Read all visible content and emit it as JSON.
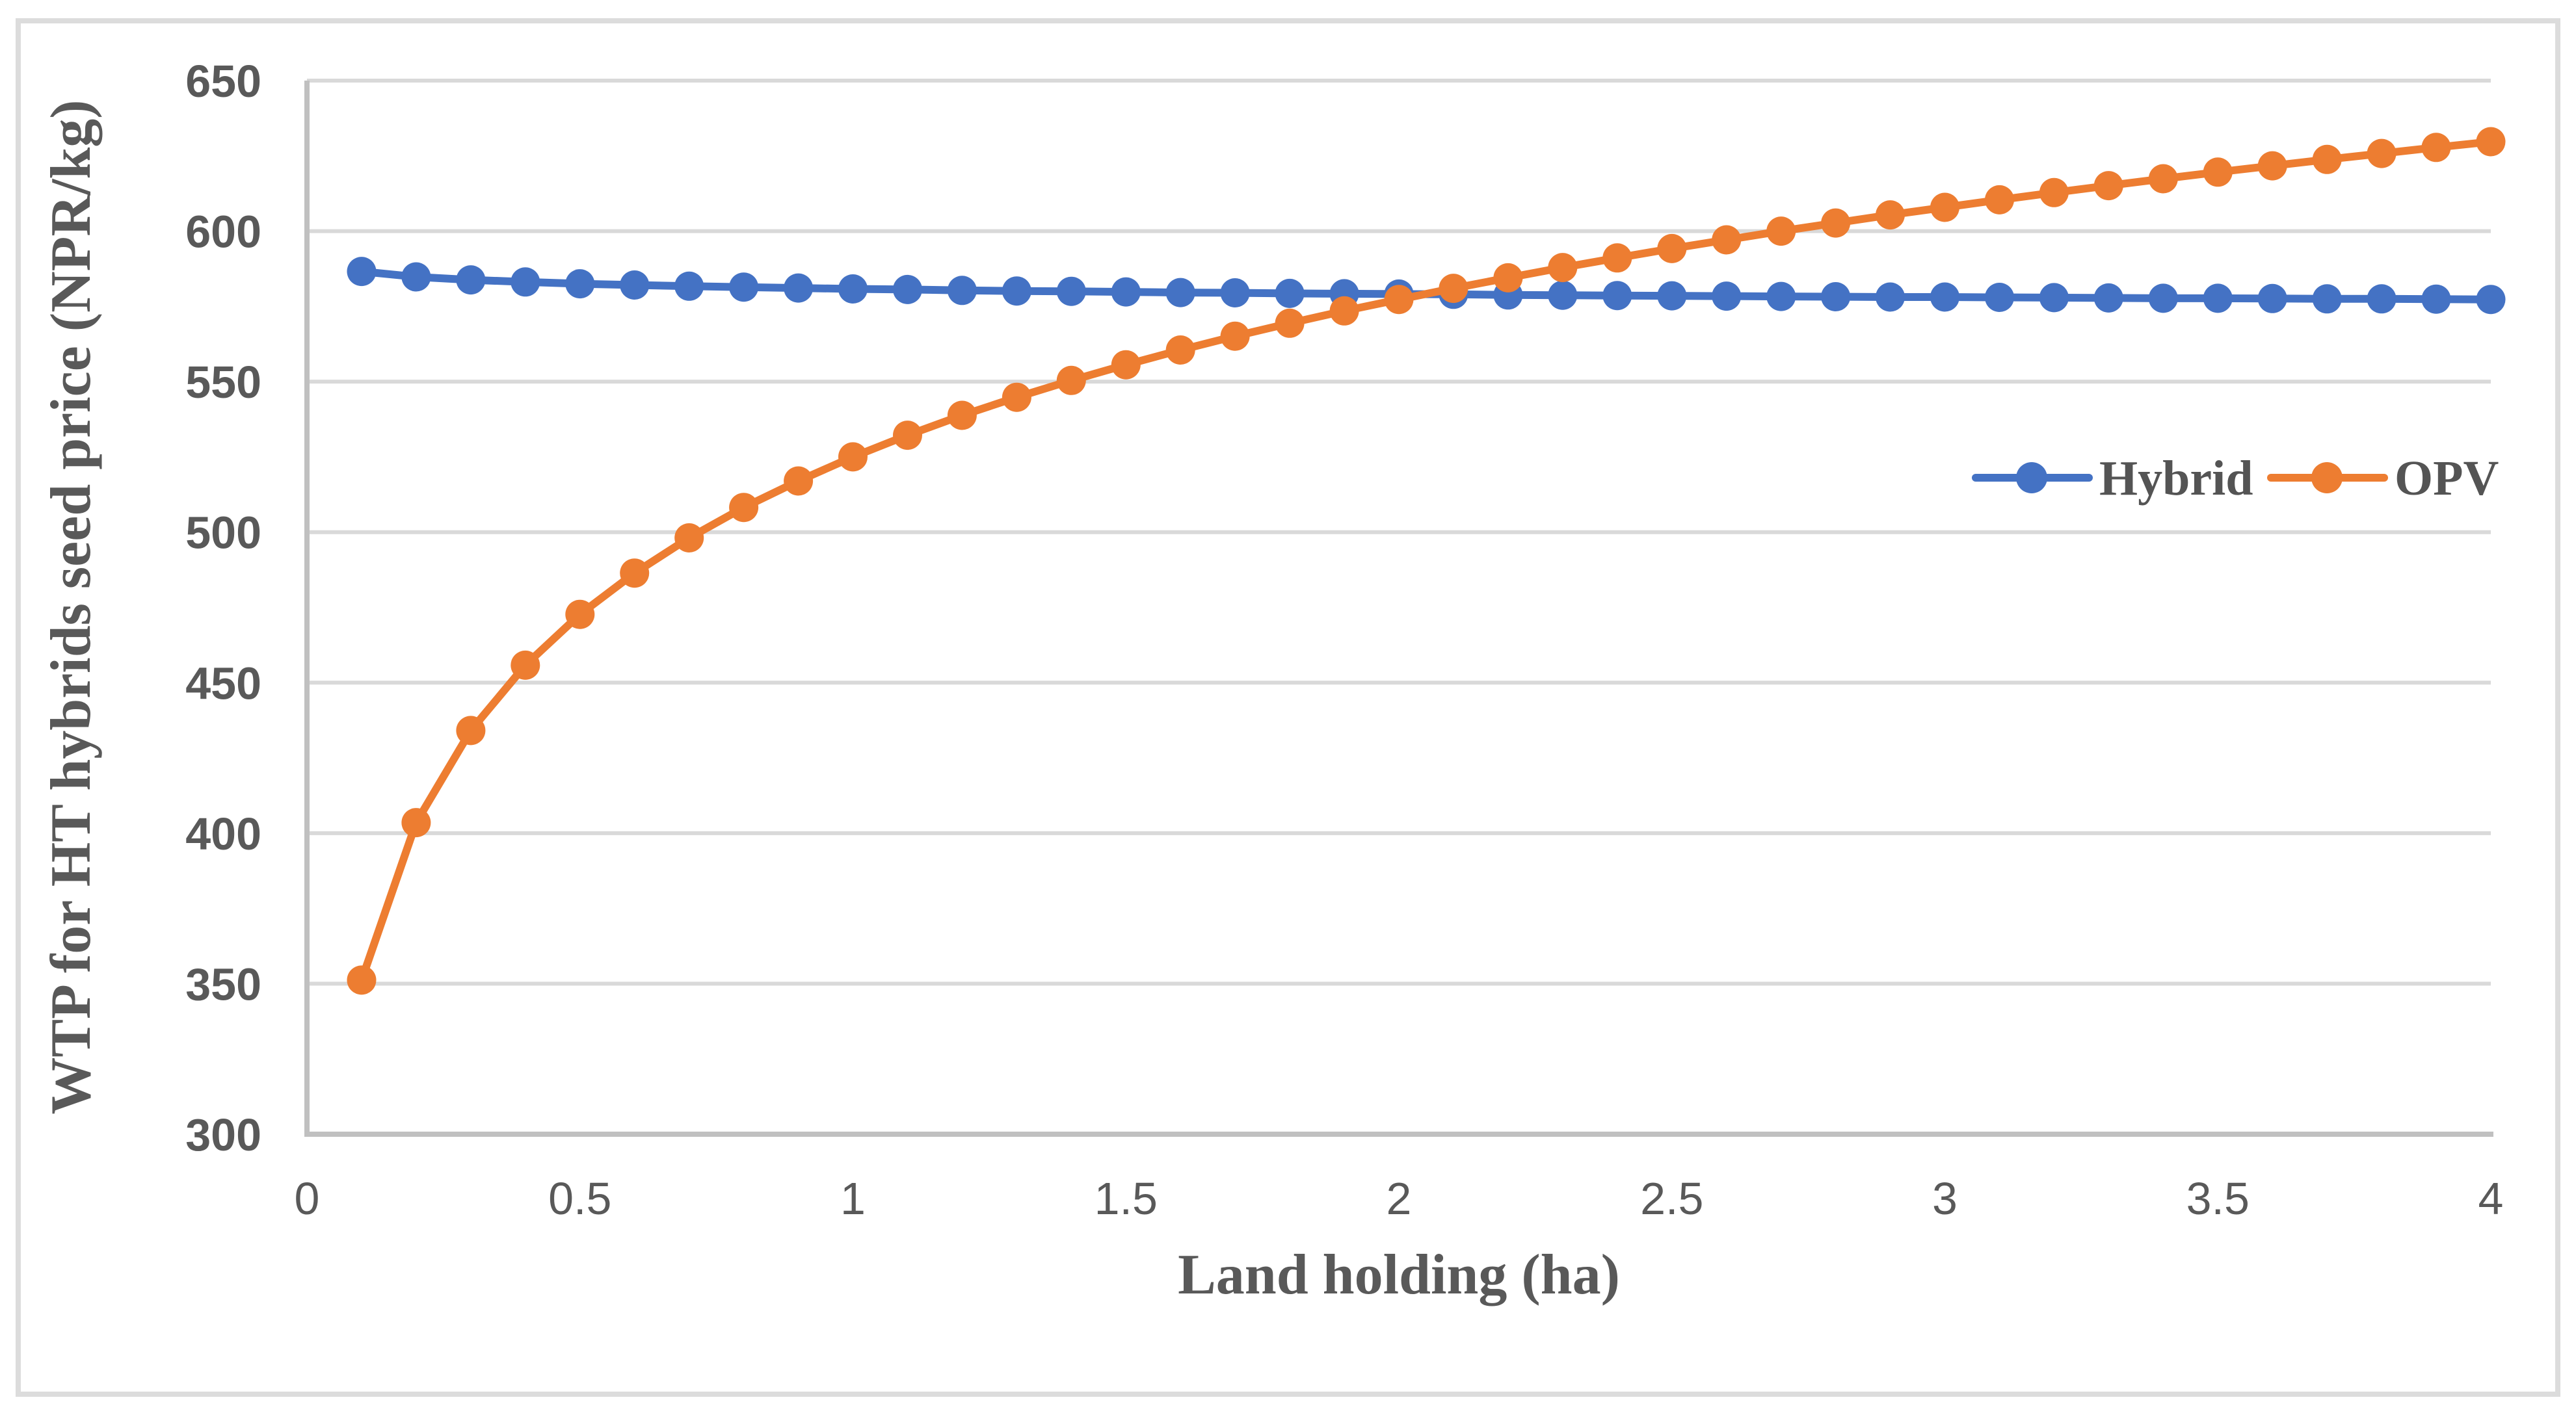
{
  "chart_data": {
    "type": "line",
    "title": "",
    "xlabel": "Land holding (ha)",
    "ylabel": "WTP for HT hybrids seed price (NPR/kg)",
    "xlim": [
      0,
      4
    ],
    "ylim": [
      300,
      650
    ],
    "x_tick_labels": [
      "0",
      "0.5",
      "1",
      "1.5",
      "2",
      "2.5",
      "3",
      "3.5",
      "4"
    ],
    "x_tick_values": [
      0,
      0.5,
      1,
      1.5,
      2,
      2.5,
      3,
      3.5,
      4
    ],
    "y_tick_labels": [
      "300",
      "350",
      "400",
      "450",
      "500",
      "550",
      "600",
      "650"
    ],
    "y_tick_values": [
      300,
      350,
      400,
      450,
      500,
      550,
      600,
      650
    ],
    "grid": "horizontal",
    "legend_position": "inside-right-middle",
    "x": [
      0.1,
      0.2,
      0.3,
      0.4,
      0.5,
      0.6,
      0.7,
      0.8,
      0.9,
      1.0,
      1.1,
      1.2,
      1.3,
      1.4,
      1.5,
      1.6,
      1.7,
      1.8,
      1.9,
      2.0,
      2.1,
      2.2,
      2.3,
      2.4,
      2.5,
      2.6,
      2.7,
      2.8,
      2.9,
      3.0,
      3.1,
      3.2,
      3.3,
      3.4,
      3.5,
      3.6,
      3.7,
      3.8,
      3.9,
      4.0
    ],
    "series": [
      {
        "name": "Hybrid",
        "color": "#4472C4",
        "values": [
          586.6,
          584.8,
          583.8,
          583.1,
          582.5,
          582.1,
          581.7,
          581.4,
          581.1,
          580.8,
          580.6,
          580.3,
          580.1,
          580.0,
          579.8,
          579.6,
          579.5,
          579.3,
          579.2,
          579.1,
          579.0,
          578.8,
          578.7,
          578.6,
          578.5,
          578.4,
          578.3,
          578.2,
          578.1,
          578.1,
          578.0,
          577.9,
          577.8,
          577.7,
          577.7,
          577.6,
          577.5,
          577.5,
          577.4,
          577.3
        ]
      },
      {
        "name": "OPV",
        "color": "#ED7D31",
        "values": [
          351.2,
          403.5,
          434.1,
          455.8,
          472.7,
          486.4,
          498.1,
          508.2,
          517.0,
          525.0,
          532.2,
          538.8,
          544.8,
          550.4,
          555.6,
          560.5,
          565.1,
          569.4,
          573.5,
          577.3,
          581.0,
          584.5,
          587.9,
          591.1,
          594.2,
          597.1,
          600.0,
          602.7,
          605.4,
          607.9,
          610.4,
          612.8,
          615.1,
          617.4,
          619.6,
          621.7,
          623.8,
          625.8,
          627.8,
          629.7
        ]
      }
    ],
    "crossing_point": {
      "x": 2.05,
      "y": 579
    },
    "colors": {
      "gridline": "#D9D9D9",
      "axis_line": "#C0C0C0",
      "tick_text": "#595959",
      "title_text": "#595959",
      "legend_text": "#545454",
      "figure_border": "#DCDCDC",
      "background": "#FFFFFF"
    }
  }
}
